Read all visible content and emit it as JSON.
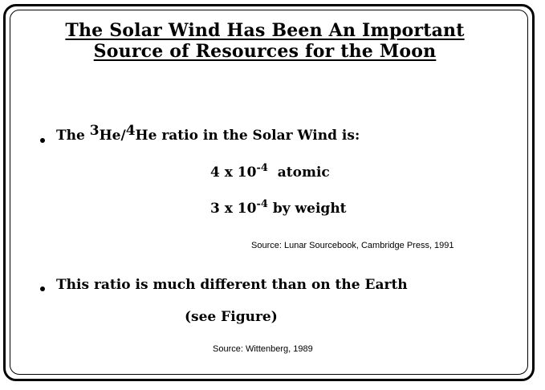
{
  "title": {
    "line1": "The  Solar Wind Has  Been An Important",
    "line2": "Source of Resources for the Moon"
  },
  "bullet1": {
    "prefix": "The ",
    "sup1": "3",
    "mid": "He/",
    "sup2": "4",
    "suffix": "He ratio in the Solar Wind is:"
  },
  "ratio_atomic": {
    "base": "4 x 10",
    "exponent": "-4",
    "unit": "  atomic"
  },
  "ratio_weight": {
    "base": "3 x 10",
    "exponent": "-4",
    "unit": " by weight"
  },
  "source1": "Source: Lunar Sourcebook, Cambridge Press, 1991",
  "bullet2": {
    "text": "This ratio is much different than on the Earth",
    "note": "(see Figure)"
  },
  "source2": "Source: Wittenberg, 1989"
}
